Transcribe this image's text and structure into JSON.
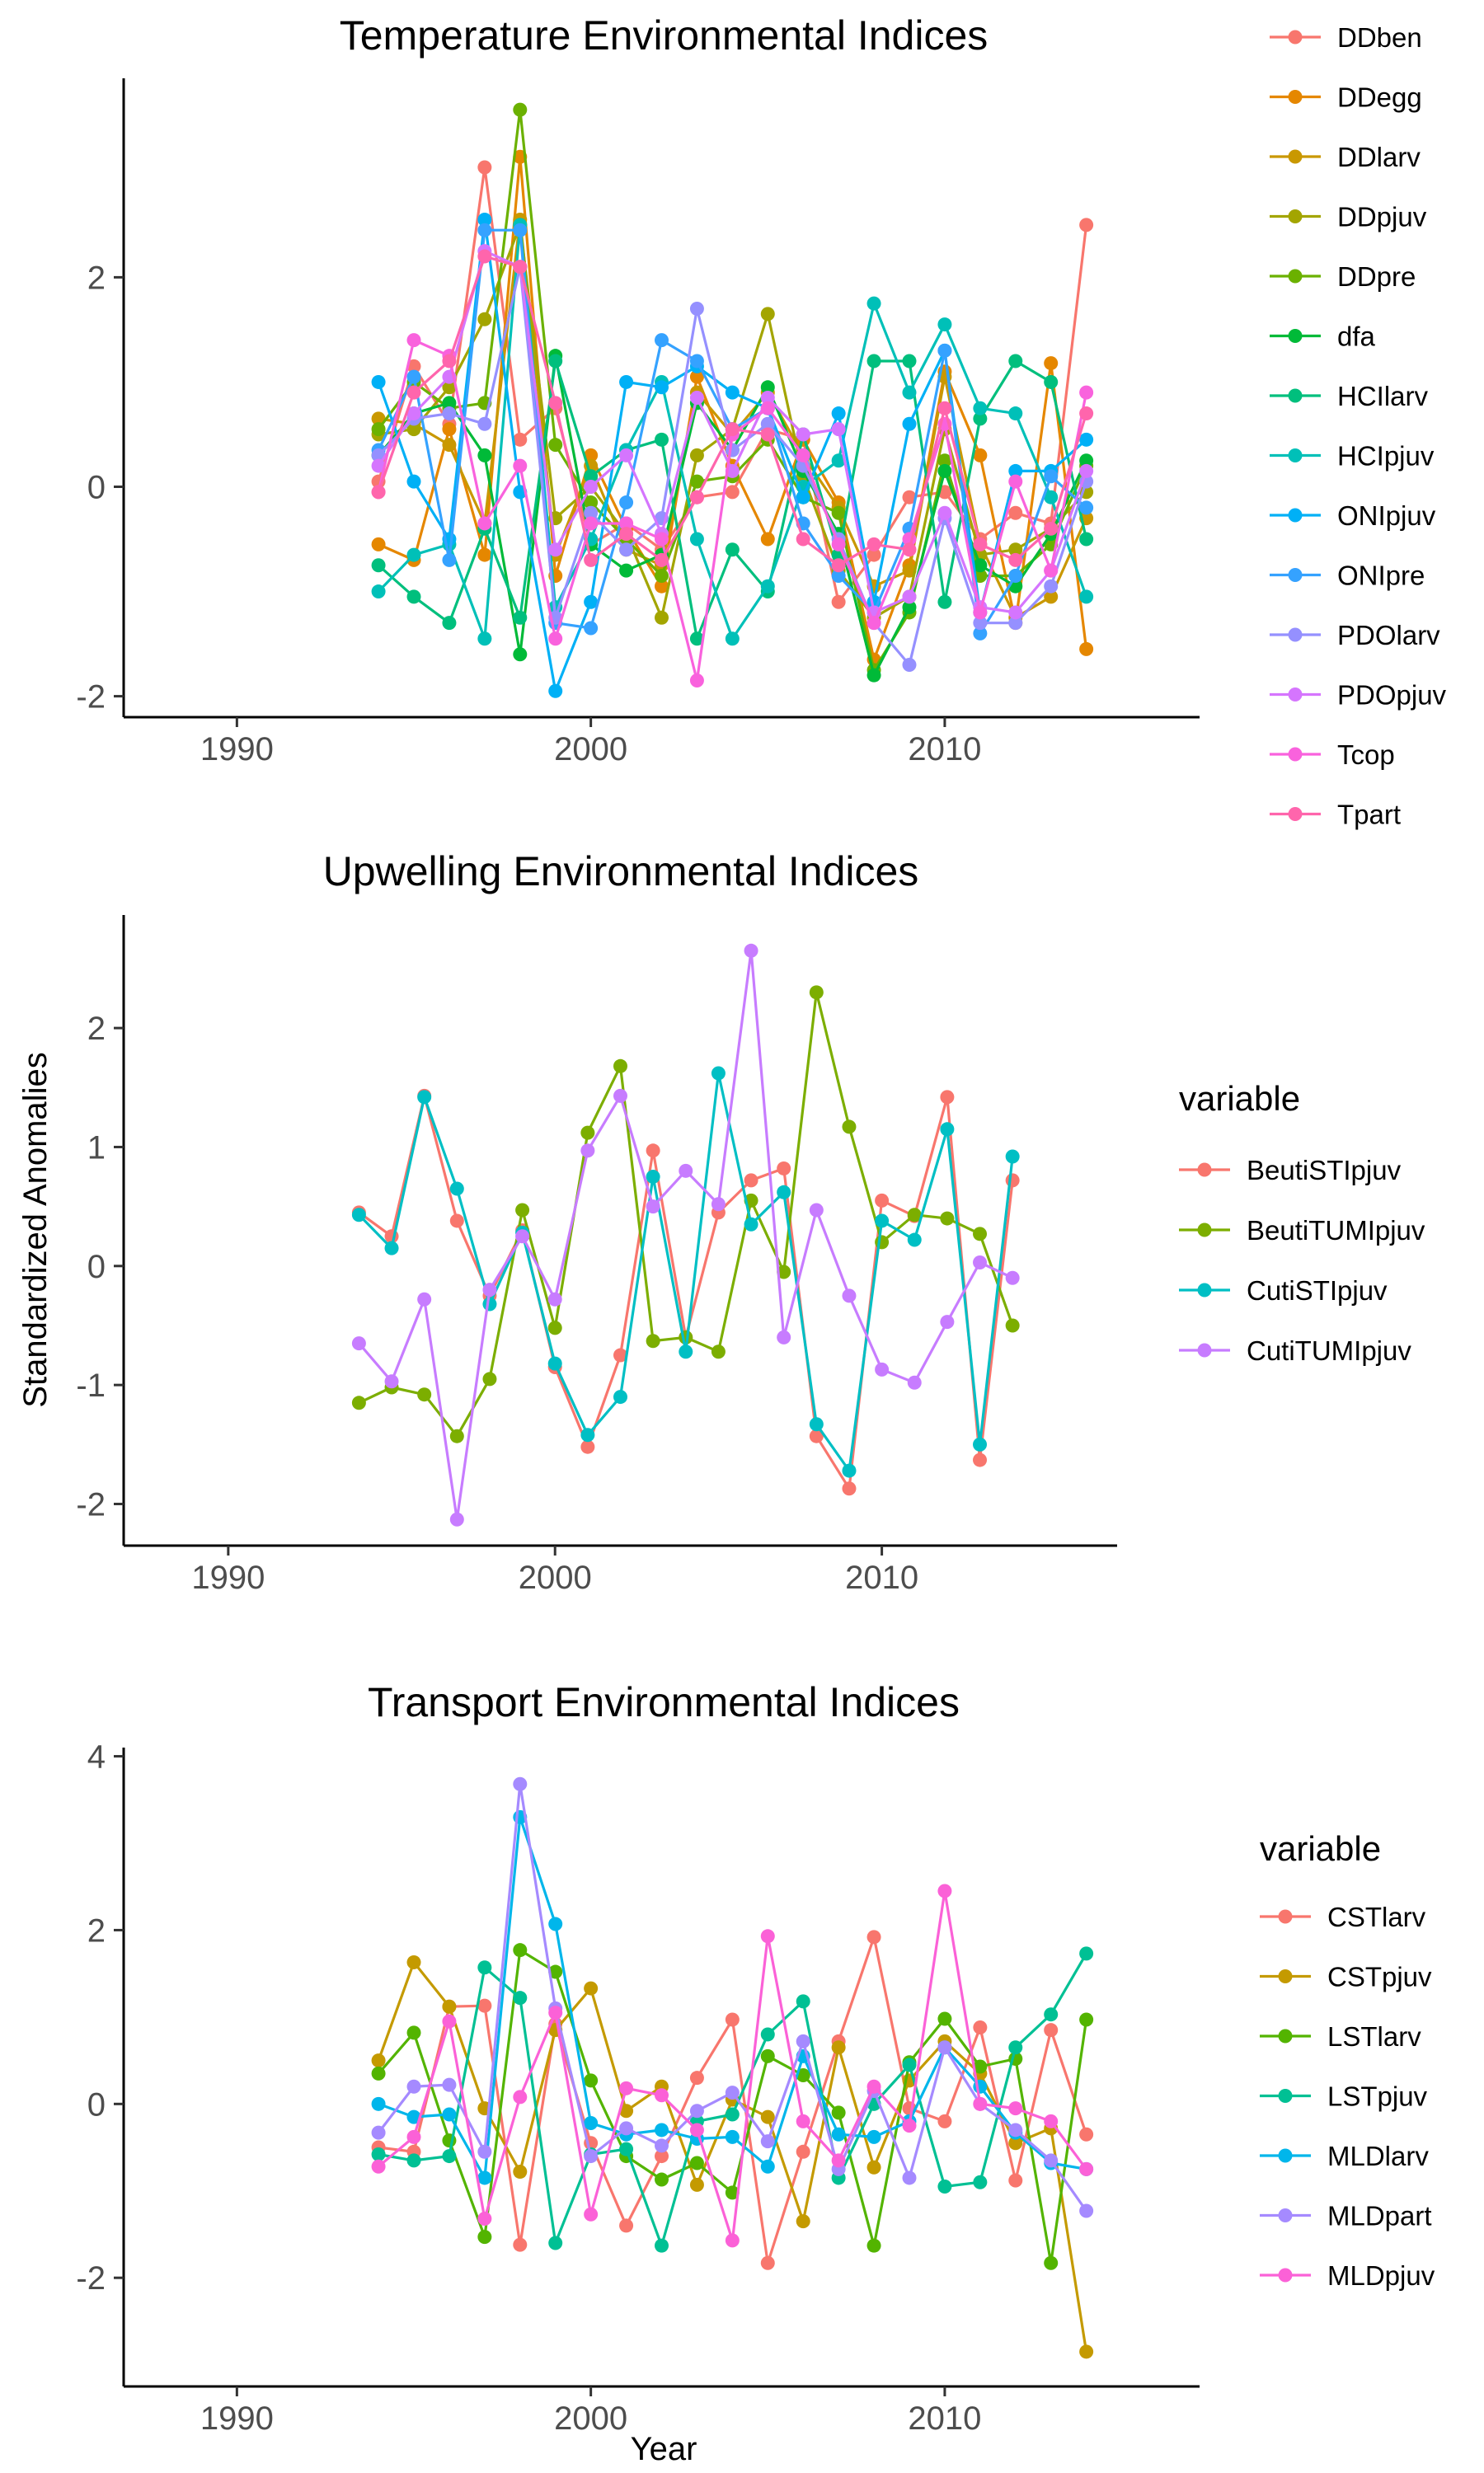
{
  "figure": {
    "shared_ylabel": "Standardized Anomalies",
    "shared_xlabel": "Year"
  },
  "chart_data": [
    {
      "type": "line",
      "title": "Temperature Environmental Indices",
      "xlabel": "",
      "ylabel": "",
      "xlim": [
        1986.8,
        2017.2
      ],
      "ylim": [
        -2.2,
        3.9
      ],
      "x_ticks": [
        1990,
        2000,
        2010
      ],
      "y_ticks": [
        -2,
        0,
        2
      ],
      "legend_title": "",
      "legend_position": "right",
      "grid": false,
      "x": [
        1994,
        1995,
        1996,
        1997,
        1998,
        1999,
        2000,
        2001,
        2002,
        2003,
        2004,
        2005,
        2006,
        2007,
        2008,
        2009,
        2010,
        2011,
        2012,
        2013,
        2014
      ],
      "series": [
        {
          "name": "DDben",
          "color": "#F8766D",
          "values": [
            0.05,
            1.15,
            0.6,
            3.05,
            0.45,
            0.75,
            -0.55,
            -0.35,
            -0.6,
            -0.1,
            -0.05,
            0.55,
            0.45,
            -1.1,
            -0.65,
            -0.1,
            -0.05,
            -0.5,
            -0.25,
            -0.35,
            2.5
          ]
        },
        {
          "name": "DDegg",
          "color": "#E58700",
          "values": [
            -0.55,
            -0.7,
            0.55,
            -0.65,
            3.15,
            -0.85,
            0.3,
            -0.4,
            -0.95,
            1.05,
            0.2,
            -0.5,
            0.45,
            -0.15,
            -1.65,
            -0.75,
            1.1,
            0.3,
            -1.3,
            1.18,
            -1.55
          ]
        },
        {
          "name": "DDlarv",
          "color": "#C99800",
          "values": [
            0.65,
            0.6,
            0.4,
            -0.35,
            2.55,
            -0.65,
            0.2,
            -0.6,
            -0.75,
            0.9,
            0.5,
            0.9,
            0.3,
            -0.2,
            -0.95,
            -0.8,
            1.05,
            -0.55,
            -1.25,
            -1.05,
            -0.3
          ]
        },
        {
          "name": "DDpjuv",
          "color": "#A3A500",
          "values": [
            0.5,
            0.55,
            0.95,
            1.6,
            2.5,
            -0.3,
            0.0,
            -0.45,
            -1.25,
            0.3,
            0.55,
            1.65,
            0.1,
            -0.8,
            -1.25,
            -1.05,
            0.55,
            -0.65,
            -0.6,
            -0.4,
            -0.05
          ]
        },
        {
          "name": "DDpre",
          "color": "#6BB100",
          "values": [
            0.55,
            1.0,
            0.75,
            0.8,
            3.6,
            0.4,
            -0.15,
            -0.5,
            -0.85,
            0.05,
            0.1,
            0.45,
            -0.1,
            -0.25,
            -1.75,
            -1.2,
            0.25,
            -0.85,
            -0.85,
            -0.55,
            0.2
          ]
        },
        {
          "name": "dfa",
          "color": "#00BA38",
          "values": [
            0.3,
            0.7,
            0.8,
            0.3,
            -1.6,
            1.25,
            -0.55,
            -0.8,
            -0.65,
            0.8,
            0.35,
            0.95,
            0.15,
            -0.45,
            -1.8,
            -1.15,
            0.15,
            -0.75,
            -0.95,
            -0.45,
            0.25
          ]
        },
        {
          "name": "HCIlarv",
          "color": "#00BF7D",
          "values": [
            -0.75,
            -1.05,
            -1.3,
            -0.4,
            -1.25,
            1.2,
            0.1,
            0.35,
            0.45,
            -1.45,
            -0.6,
            -1.0,
            0.5,
            -0.65,
            1.2,
            1.2,
            -1.1,
            0.65,
            1.2,
            1.0,
            -0.5
          ]
        },
        {
          "name": "HCIpjuv",
          "color": "#00C0B8",
          "values": [
            -1.0,
            -0.65,
            -0.55,
            -1.45,
            2.5,
            -1.15,
            -0.5,
            0.35,
            1.0,
            -0.5,
            -1.45,
            -0.95,
            0.0,
            0.25,
            1.75,
            0.9,
            1.55,
            0.75,
            0.7,
            -0.1,
            -1.05
          ]
        },
        {
          "name": "ONIpjuv",
          "color": "#00B0F6",
          "values": [
            1.0,
            0.05,
            -0.5,
            2.55,
            -0.05,
            -1.95,
            -1.1,
            1.0,
            0.95,
            1.15,
            0.9,
            0.75,
            -0.1,
            0.7,
            -1.1,
            0.6,
            1.3,
            -1.2,
            0.15,
            0.15,
            0.45
          ]
        },
        {
          "name": "ONIpre",
          "color": "#35A2FF",
          "values": [
            0.35,
            1.05,
            -0.7,
            2.45,
            2.45,
            -1.3,
            -1.35,
            -0.15,
            1.4,
            1.2,
            0.55,
            0.75,
            -0.35,
            -0.85,
            -1.2,
            -0.4,
            1.3,
            -1.4,
            -0.85,
            0.1,
            -0.2
          ]
        },
        {
          "name": "PDOlarv",
          "color": "#9590FF",
          "values": [
            0.3,
            0.65,
            0.7,
            0.6,
            2.1,
            -1.25,
            -0.25,
            -0.6,
            -0.3,
            1.7,
            0.35,
            0.6,
            0.2,
            -0.5,
            -1.3,
            -1.7,
            -0.3,
            -1.3,
            -1.3,
            -0.95,
            0.05
          ]
        },
        {
          "name": "PDOpjuv",
          "color": "#D575FE",
          "values": [
            0.2,
            0.7,
            1.05,
            2.25,
            2.1,
            -0.6,
            0.0,
            0.3,
            -0.45,
            0.85,
            0.15,
            0.85,
            0.5,
            0.55,
            -1.2,
            -1.05,
            -0.25,
            -1.15,
            -1.2,
            -0.8,
            0.15
          ]
        },
        {
          "name": "Tcop",
          "color": "#F962DD",
          "values": [
            -0.05,
            1.4,
            1.25,
            -0.35,
            0.2,
            -1.45,
            -0.35,
            -0.35,
            -0.5,
            -1.85,
            0.5,
            0.75,
            0.3,
            -0.55,
            -1.3,
            -0.5,
            0.6,
            -1.2,
            0.05,
            -0.8,
            0.9
          ]
        },
        {
          "name": "Tpart",
          "color": "#FF65AC",
          "values": [
            -0.05,
            0.9,
            1.2,
            2.2,
            2.1,
            0.8,
            -0.7,
            -0.45,
            -0.7,
            -0.1,
            0.55,
            0.5,
            -0.5,
            -0.75,
            -0.55,
            -0.6,
            0.75,
            -0.55,
            -0.7,
            -0.4,
            0.7
          ]
        }
      ]
    },
    {
      "type": "line",
      "title": "Upwelling Environmental Indices",
      "xlabel": "",
      "ylabel": "",
      "xlim": [
        1986.8,
        2017.2
      ],
      "ylim": [
        -2.35,
        2.95
      ],
      "x_ticks": [
        1990,
        2000,
        2010
      ],
      "y_ticks": [
        -2,
        -1,
        0,
        1,
        2
      ],
      "legend_title": "variable",
      "legend_position": "right",
      "grid": false,
      "x": [
        1994,
        1995,
        1996,
        1997,
        1998,
        1999,
        2000,
        2001,
        2002,
        2003,
        2004,
        2005,
        2006,
        2007,
        2008,
        2009,
        2010,
        2011,
        2012,
        2013,
        2014
      ],
      "series": [
        {
          "name": "BeutiSTIpjuv",
          "color": "#F8766D",
          "values": [
            0.45,
            0.25,
            1.43,
            0.38,
            -0.25,
            0.3,
            -0.85,
            -1.52,
            -0.75,
            0.97,
            -0.6,
            0.45,
            0.72,
            0.82,
            -1.43,
            -1.87,
            0.55,
            0.42,
            1.42,
            -1.63,
            0.72
          ]
        },
        {
          "name": "BeutiTUMIpjuv",
          "color": "#7CAE00",
          "values": [
            -1.15,
            -1.02,
            -1.08,
            -1.43,
            -0.95,
            0.47,
            -0.52,
            1.12,
            1.68,
            -0.63,
            -0.6,
            -0.72,
            0.55,
            -0.05,
            2.3,
            1.17,
            0.2,
            0.43,
            0.4,
            0.27,
            -0.5
          ]
        },
        {
          "name": "CutiSTIpjuv",
          "color": "#00BFC4",
          "values": [
            0.43,
            0.15,
            1.42,
            0.65,
            -0.32,
            0.28,
            -0.82,
            -1.42,
            -1.1,
            0.75,
            -0.72,
            1.62,
            0.35,
            0.62,
            -1.33,
            -1.72,
            0.38,
            0.22,
            1.15,
            -1.5,
            0.92
          ]
        },
        {
          "name": "CutiTUMIpjuv",
          "color": "#C77CFF",
          "values": [
            -0.65,
            -0.97,
            -0.28,
            -2.13,
            -0.2,
            0.25,
            -0.28,
            0.97,
            1.43,
            0.5,
            0.8,
            0.52,
            2.65,
            -0.6,
            0.47,
            -0.25,
            -0.87,
            -0.98,
            -0.47,
            0.03,
            -0.1
          ]
        }
      ]
    },
    {
      "type": "line",
      "title": "Transport Environmental Indices",
      "xlabel": "Year",
      "ylabel": "",
      "xlim": [
        1986.8,
        2017.2
      ],
      "ylim": [
        -3.25,
        4.1
      ],
      "x_ticks": [
        1990,
        2000,
        2010
      ],
      "y_ticks": [
        -2,
        0,
        2,
        4
      ],
      "legend_title": "variable",
      "legend_position": "right",
      "grid": false,
      "x": [
        1994,
        1995,
        1996,
        1997,
        1998,
        1999,
        2000,
        2001,
        2002,
        2003,
        2004,
        2005,
        2006,
        2007,
        2008,
        2009,
        2010,
        2011,
        2012,
        2013,
        2014
      ],
      "series": [
        {
          "name": "CSTlarv",
          "color": "#F8766D",
          "values": [
            -0.5,
            -0.55,
            1.12,
            1.13,
            -1.62,
            0.92,
            -0.45,
            -1.4,
            -0.6,
            0.3,
            0.97,
            -1.83,
            -0.55,
            0.72,
            1.92,
            -0.05,
            -0.2,
            0.88,
            -0.88,
            0.85,
            -0.35
          ]
        },
        {
          "name": "CSTpjuv",
          "color": "#C49A00",
          "values": [
            0.5,
            1.63,
            1.12,
            -0.05,
            -0.78,
            0.85,
            1.33,
            -0.08,
            0.2,
            -0.93,
            0.05,
            -0.15,
            -1.35,
            0.65,
            -0.73,
            0.27,
            0.72,
            0.35,
            -0.45,
            -0.28,
            -2.85
          ]
        },
        {
          "name": "LSTlarv",
          "color": "#53B400",
          "values": [
            0.35,
            0.82,
            -0.42,
            -1.53,
            1.77,
            1.52,
            0.27,
            -0.6,
            -0.87,
            -0.68,
            -1.02,
            0.55,
            0.33,
            -0.1,
            -1.63,
            0.48,
            0.98,
            0.43,
            0.52,
            -1.83,
            0.97
          ]
        },
        {
          "name": "LSTpjuv",
          "color": "#00C094",
          "values": [
            -0.58,
            -0.65,
            -0.6,
            1.57,
            1.22,
            -1.6,
            -0.58,
            -0.52,
            -1.63,
            -0.2,
            -0.12,
            0.8,
            1.18,
            -0.85,
            0.0,
            0.45,
            -0.95,
            -0.9,
            0.65,
            1.03,
            1.73
          ]
        },
        {
          "name": "MLDlarv",
          "color": "#00B6EB",
          "values": [
            0.0,
            -0.15,
            -0.12,
            -0.85,
            3.3,
            2.07,
            -0.22,
            -0.35,
            -0.3,
            -0.4,
            -0.38,
            -0.72,
            0.55,
            -0.35,
            -0.38,
            -0.2,
            0.65,
            0.2,
            -0.33,
            -0.68,
            -0.75
          ]
        },
        {
          "name": "MLDpart",
          "color": "#A58AFF",
          "values": [
            -0.33,
            0.2,
            0.22,
            -0.55,
            3.68,
            1.1,
            -0.6,
            -0.28,
            -0.48,
            -0.08,
            0.13,
            -0.43,
            0.72,
            -0.75,
            0.15,
            -0.85,
            0.65,
            0.0,
            -0.3,
            -0.65,
            -1.23
          ]
        },
        {
          "name": "MLDpjuv",
          "color": "#FB61D7",
          "values": [
            -0.72,
            -0.38,
            0.95,
            -1.32,
            0.08,
            1.05,
            -1.27,
            0.18,
            0.1,
            -0.3,
            -1.57,
            1.93,
            -0.2,
            -0.65,
            0.2,
            -0.25,
            2.45,
            0.0,
            -0.05,
            -0.2,
            -0.75
          ]
        }
      ]
    }
  ]
}
